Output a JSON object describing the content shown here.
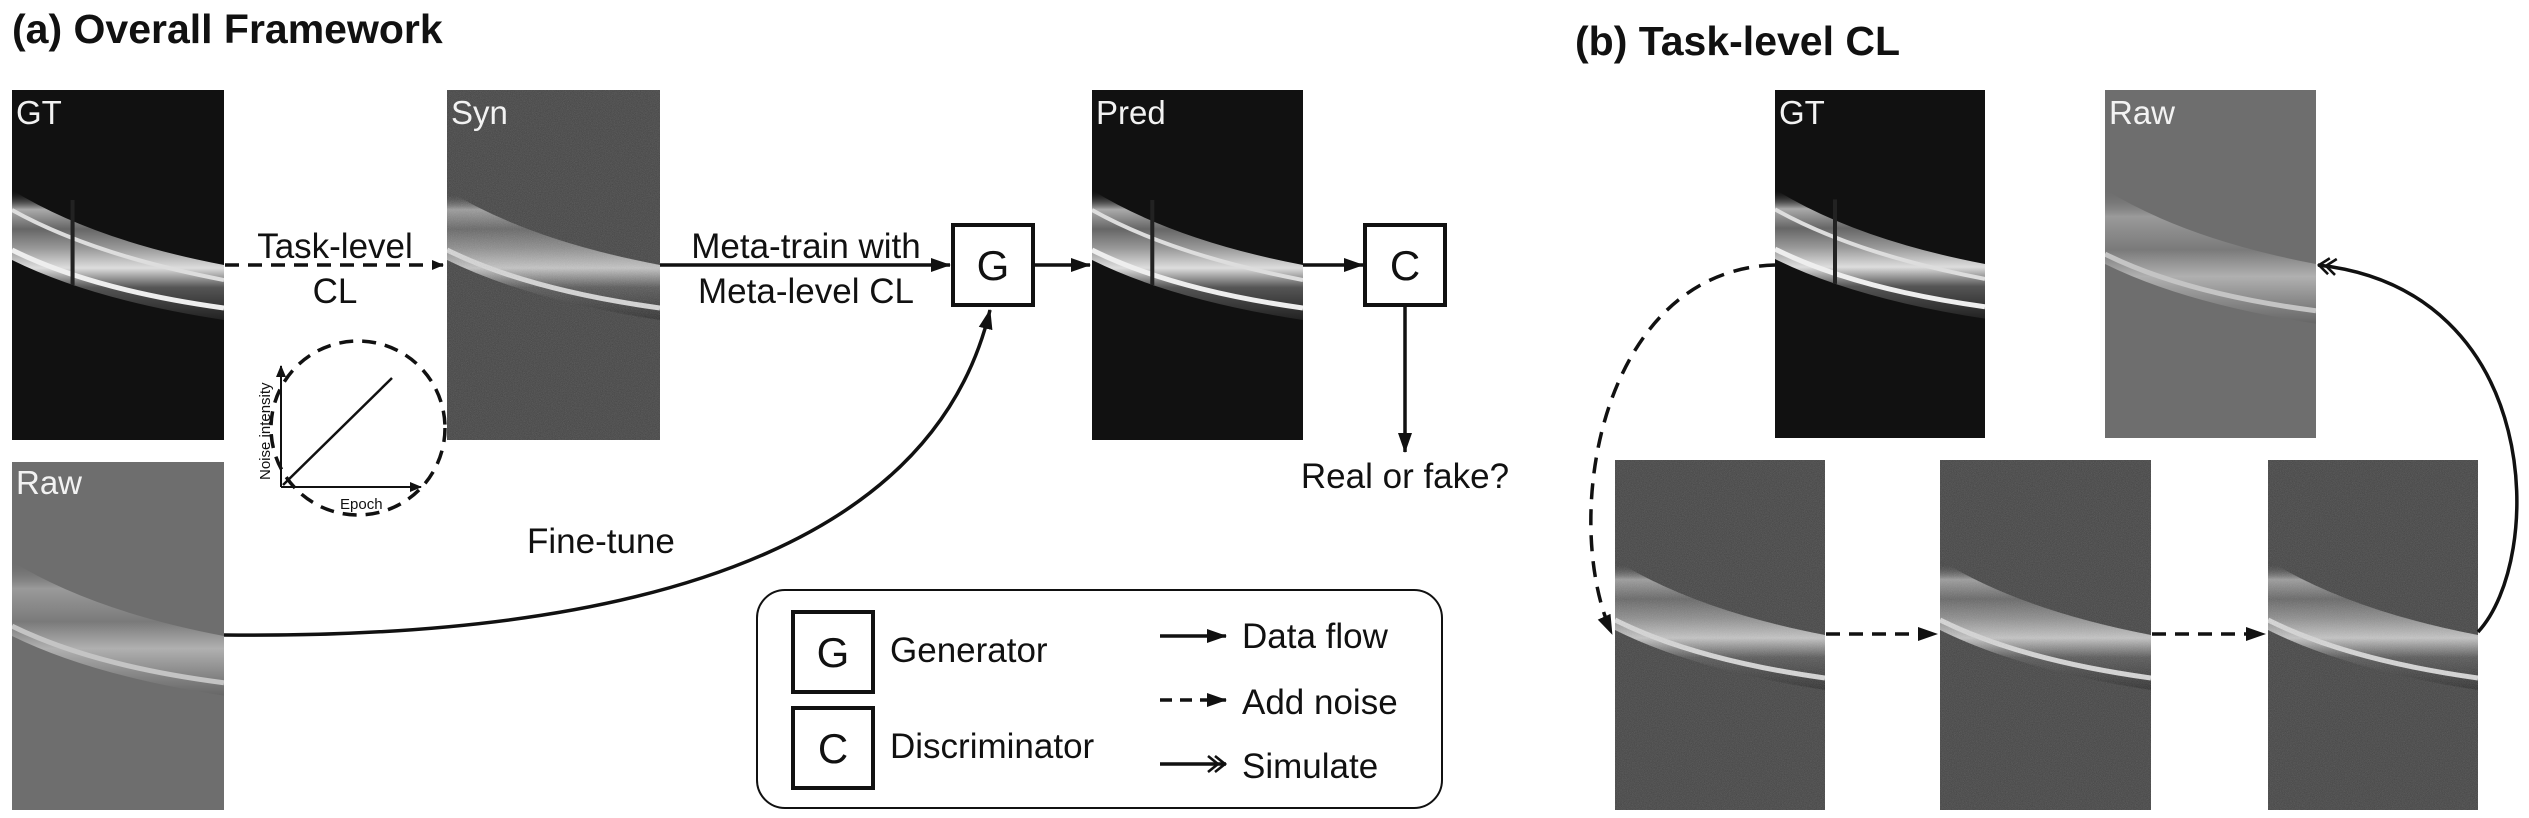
{
  "panel_a": {
    "title": "(a) Overall Framework",
    "images": {
      "gt": "GT",
      "syn": "Syn",
      "pred": "Pred",
      "raw": "Raw"
    },
    "task_level_top": "Task-level",
    "task_level_bottom": "CL",
    "meta_train_top": "Meta-train with",
    "meta_train_bottom": "Meta-level CL",
    "generator_letter": "G",
    "discriminator_letter": "C",
    "real_or_fake": "Real or fake?",
    "fine_tune": "Fine-tune",
    "inset": {
      "y_label": "Noise intensity",
      "x_label": "Epoch"
    }
  },
  "legend": {
    "generator_letter": "G",
    "generator": "Generator",
    "discriminator_letter": "C",
    "discriminator": "Discriminator",
    "data_flow": "Data flow",
    "add_noise": "Add noise",
    "simulate": "Simulate"
  },
  "panel_b": {
    "title": "(b) Task-level CL",
    "images": {
      "gt": "GT",
      "raw": "Raw"
    }
  },
  "colors": {
    "gt_bg": "#111111",
    "raw_bg": "#6e6e6e",
    "syn_bg": "#3a3a3a",
    "line": "#111111"
  }
}
